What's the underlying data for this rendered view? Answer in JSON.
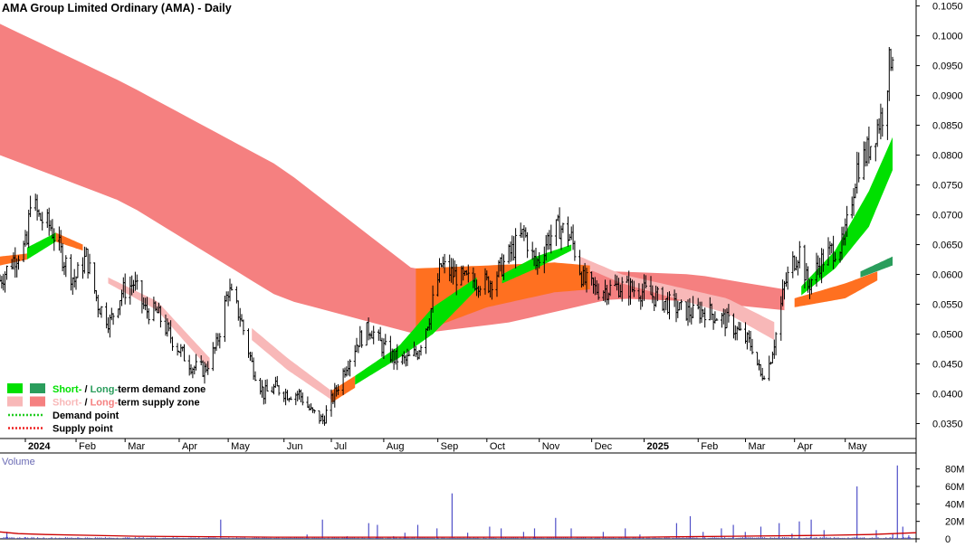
{
  "chart_data": [
    {
      "type": "candlestick",
      "title": "AMA Group Limited Ordinary (AMA) - Daily",
      "x_axis": {
        "ticks": [
          "2024",
          "Feb",
          "Mar",
          "Apr",
          "May",
          "Jun",
          "Jul",
          "Aug",
          "Sep",
          "Oct",
          "Nov",
          "Dec",
          "2025",
          "Feb",
          "Mar",
          "Apr",
          "May"
        ]
      },
      "y_axis": {
        "ticks": [
          "0.1050",
          "0.1000",
          "0.0950",
          "0.0900",
          "0.0850",
          "0.0800",
          "0.0750",
          "0.0700",
          "0.0650",
          "0.0600",
          "0.0550",
          "0.0500",
          "0.0450",
          "0.0400",
          "0.0350"
        ],
        "ylim": [
          0.0325,
          0.106
        ],
        "position": "right"
      },
      "price_path": [
        [
          "2023-12-18",
          0.059
        ],
        [
          "2023-12-27",
          0.063
        ],
        [
          "2024-01-03",
          0.065
        ],
        [
          "2024-01-05",
          0.073
        ],
        [
          "2024-01-10",
          0.0695
        ],
        [
          "2024-01-17",
          0.068
        ],
        [
          "2024-01-24",
          0.063
        ],
        [
          "2024-01-31",
          0.059
        ],
        [
          "2024-02-07",
          0.063
        ],
        [
          "2024-02-14",
          0.055
        ],
        [
          "2024-02-21",
          0.052
        ],
        [
          "2024-02-28",
          0.057
        ],
        [
          "2024-03-06",
          0.0585
        ],
        [
          "2024-03-13",
          0.054
        ],
        [
          "2024-03-20",
          0.0535
        ],
        [
          "2024-03-27",
          0.05
        ],
        [
          "2024-04-03",
          0.047
        ],
        [
          "2024-04-10",
          0.0445
        ],
        [
          "2024-04-17",
          0.044
        ],
        [
          "2024-04-24",
          0.048
        ],
        [
          "2024-05-01",
          0.0575
        ],
        [
          "2024-05-08",
          0.053
        ],
        [
          "2024-05-15",
          0.045
        ],
        [
          "2024-05-22",
          0.04
        ],
        [
          "2024-05-29",
          0.041
        ],
        [
          "2024-06-05",
          0.04
        ],
        [
          "2024-06-12",
          0.04
        ],
        [
          "2024-06-19",
          0.037
        ],
        [
          "2024-06-26",
          0.0355
        ],
        [
          "2024-07-03",
          0.04
        ],
        [
          "2024-07-10",
          0.045
        ],
        [
          "2024-07-17",
          0.049
        ],
        [
          "2024-07-24",
          0.051
        ],
        [
          "2024-07-31",
          0.048
        ],
        [
          "2024-08-07",
          0.046
        ],
        [
          "2024-08-14",
          0.0455
        ],
        [
          "2024-08-21",
          0.047
        ],
        [
          "2024-08-28",
          0.053
        ],
        [
          "2024-09-04",
          0.0615
        ],
        [
          "2024-09-11",
          0.06
        ],
        [
          "2024-09-18",
          0.059
        ],
        [
          "2024-09-25",
          0.059
        ],
        [
          "2024-10-02",
          0.0585
        ],
        [
          "2024-10-09",
          0.061
        ],
        [
          "2024-10-16",
          0.064
        ],
        [
          "2024-10-23",
          0.067
        ],
        [
          "2024-10-30",
          0.0615
        ],
        [
          "2024-11-06",
          0.066
        ],
        [
          "2024-11-13",
          0.068
        ],
        [
          "2024-11-20",
          0.066
        ],
        [
          "2024-11-27",
          0.059
        ],
        [
          "2024-12-04",
          0.0575
        ],
        [
          "2024-12-11",
          0.0575
        ],
        [
          "2024-12-18",
          0.058
        ],
        [
          "2024-12-27",
          0.0575
        ],
        [
          "2025-01-03",
          0.057
        ],
        [
          "2025-01-10",
          0.056
        ],
        [
          "2025-01-17",
          0.055
        ],
        [
          "2025-01-24",
          0.054
        ],
        [
          "2025-01-31",
          0.0535
        ],
        [
          "2025-02-07",
          0.054
        ],
        [
          "2025-02-14",
          0.053
        ],
        [
          "2025-02-21",
          0.052
        ],
        [
          "2025-02-28",
          0.05
        ],
        [
          "2025-03-07",
          0.048
        ],
        [
          "2025-03-12",
          0.043
        ],
        [
          "2025-03-17",
          0.045
        ],
        [
          "2025-03-21",
          0.05
        ],
        [
          "2025-03-26",
          0.058
        ],
        [
          "2025-03-31",
          0.062
        ],
        [
          "2025-04-04",
          0.064
        ],
        [
          "2025-04-09",
          0.058
        ],
        [
          "2025-04-16",
          0.062
        ],
        [
          "2025-04-23",
          0.064
        ],
        [
          "2025-04-30",
          0.065
        ],
        [
          "2025-05-05",
          0.073
        ],
        [
          "2025-05-08",
          0.078
        ],
        [
          "2025-05-13",
          0.08
        ],
        [
          "2025-05-16",
          0.082
        ],
        [
          "2025-05-20",
          0.085
        ],
        [
          "2025-05-23",
          0.087
        ],
        [
          "2025-05-27",
          0.095
        ],
        [
          "2025-05-29",
          0.098
        ]
      ],
      "long_term_supply_zone": {
        "color": "#f58080",
        "upper": [
          [
            "2023-12-18",
            0.102
          ],
          [
            "2024-03-01",
            0.092
          ],
          [
            "2024-06-01",
            0.078
          ],
          [
            "2024-08-20",
            0.0605
          ],
          [
            "2024-10-15",
            0.061
          ],
          [
            "2024-12-15",
            0.0605
          ],
          [
            "2025-02-01",
            0.06
          ],
          [
            "2025-03-26",
            0.0575
          ]
        ],
        "lower": [
          [
            "2023-12-18",
            0.08
          ],
          [
            "2024-03-01",
            0.072
          ],
          [
            "2024-06-01",
            0.056
          ],
          [
            "2024-08-20",
            0.05
          ],
          [
            "2024-10-15",
            0.052
          ],
          [
            "2024-12-15",
            0.056
          ],
          [
            "2025-02-01",
            0.0555
          ],
          [
            "2025-03-26",
            0.054
          ]
        ]
      },
      "short_term_supply_zone": {
        "color": "#f8b8b8",
        "segments": [
          {
            "upper": [
              [
                "2024-02-20",
                0.0595
              ],
              [
                "2024-03-20",
                0.0555
              ],
              [
                "2024-04-20",
                0.046
              ]
            ],
            "lower": [
              [
                "2024-02-20",
                0.0585
              ],
              [
                "2024-03-20",
                0.054
              ],
              [
                "2024-04-20",
                0.044
              ]
            ]
          },
          {
            "upper": [
              [
                "2024-05-15",
                0.051
              ],
              [
                "2024-06-05",
                0.046
              ],
              [
                "2024-07-01",
                0.0405
              ]
            ],
            "lower": [
              [
                "2024-05-15",
                0.049
              ],
              [
                "2024-06-05",
                0.044
              ],
              [
                "2024-07-01",
                0.039
              ]
            ]
          },
          {
            "upper": [
              [
                "2024-11-25",
                0.063
              ],
              [
                "2024-12-20",
                0.06
              ],
              [
                "2025-02-20",
                0.056
              ],
              [
                "2025-03-20",
                0.052
              ]
            ],
            "lower": [
              [
                "2024-11-25",
                0.0615
              ],
              [
                "2024-12-20",
                0.0585
              ],
              [
                "2025-02-20",
                0.0535
              ],
              [
                "2025-03-20",
                0.049
              ]
            ]
          }
        ]
      },
      "short_term_demand_zone": {
        "color": "#00e000",
        "segments": [
          {
            "upper": [
              [
                "2024-01-03",
                0.0645
              ],
              [
                "2024-01-20",
                0.067
              ]
            ],
            "lower": [
              [
                "2024-01-03",
                0.0625
              ],
              [
                "2024-01-20",
                0.0655
              ]
            ]
          },
          {
            "upper": [
              [
                "2024-07-15",
                0.043
              ],
              [
                "2024-08-10",
                0.048
              ],
              [
                "2024-08-30",
                0.0545
              ],
              [
                "2024-09-25",
                0.0595
              ]
            ],
            "lower": [
              [
                "2024-07-15",
                0.0415
              ],
              [
                "2024-08-10",
                0.046
              ],
              [
                "2024-08-30",
                0.05
              ],
              [
                "2024-09-25",
                0.0575
              ]
            ]
          },
          {
            "upper": [
              [
                "2024-10-10",
                0.06
              ],
              [
                "2024-10-30",
                0.063
              ],
              [
                "2024-11-20",
                0.065
              ]
            ],
            "lower": [
              [
                "2024-10-10",
                0.0585
              ],
              [
                "2024-10-30",
                0.061
              ],
              [
                "2024-11-20",
                0.064
              ]
            ]
          },
          {
            "upper": [
              [
                "2025-04-05",
                0.058
              ],
              [
                "2025-04-25",
                0.064
              ],
              [
                "2025-05-15",
                0.074
              ],
              [
                "2025-05-29",
                0.083
              ]
            ],
            "lower": [
              [
                "2025-04-05",
                0.0565
              ],
              [
                "2025-04-25",
                0.061
              ],
              [
                "2025-05-15",
                0.068
              ],
              [
                "2025-05-29",
                0.0775
              ]
            ]
          }
        ]
      },
      "long_term_demand_zone": {
        "color": "#2a9d5c",
        "segments": [
          {
            "upper": [
              [
                "2025-05-10",
                0.0605
              ],
              [
                "2025-05-29",
                0.063
              ]
            ],
            "lower": [
              [
                "2025-05-10",
                0.0595
              ],
              [
                "2025-05-29",
                0.0615
              ]
            ]
          }
        ]
      },
      "orange_band": {
        "color": "#ff7020",
        "segments": [
          {
            "upper": [
              [
                "2023-12-18",
                0.063
              ],
              [
                "2024-01-03",
                0.0635
              ]
            ],
            "lower": [
              [
                "2023-12-18",
                0.0615
              ],
              [
                "2024-01-03",
                0.0625
              ]
            ]
          },
          {
            "upper": [
              [
                "2024-01-20",
                0.067
              ],
              [
                "2024-02-05",
                0.065
              ]
            ],
            "lower": [
              [
                "2024-01-20",
                0.0655
              ],
              [
                "2024-02-05",
                0.064
              ]
            ]
          },
          {
            "upper": [
              [
                "2024-07-01",
                0.0405
              ],
              [
                "2024-07-15",
                0.043
              ]
            ],
            "lower": [
              [
                "2024-07-01",
                0.0385
              ],
              [
                "2024-07-15",
                0.041
              ]
            ]
          },
          {
            "upper": [
              [
                "2024-08-20",
                0.061
              ],
              [
                "2024-10-01",
                0.0615
              ],
              [
                "2024-11-10",
                0.062
              ],
              [
                "2024-12-01",
                0.0615
              ]
            ],
            "lower": [
              [
                "2024-08-20",
                0.05
              ],
              [
                "2024-10-01",
                0.0545
              ],
              [
                "2024-11-10",
                0.057
              ],
              [
                "2024-12-01",
                0.0575
              ]
            ]
          },
          {
            "upper": [
              [
                "2025-04-01",
                0.056
              ],
              [
                "2025-05-01",
                0.0585
              ],
              [
                "2025-05-20",
                0.0605
              ]
            ],
            "lower": [
              [
                "2025-04-01",
                0.0545
              ],
              [
                "2025-05-01",
                0.056
              ],
              [
                "2025-05-20",
                0.059
              ]
            ]
          }
        ]
      },
      "legend": {
        "placement": "bottom-left",
        "items": [
          {
            "label_short": "Short-",
            "label_sep": " / ",
            "label_long": "Long-",
            "label_rest": "term demand zone",
            "short_color": "#00e000",
            "long_color": "#2a9d5c",
            "kind": "zone"
          },
          {
            "label_short": "Short-",
            "label_sep": " / ",
            "label_long": "Long-",
            "label_rest": "term supply zone",
            "short_color": "#f8b8b8",
            "long_color": "#f58080",
            "kind": "zone"
          },
          {
            "label": "Demand point",
            "color": "#22cc22",
            "kind": "dotted"
          },
          {
            "label": "Supply point",
            "color": "#ee2222",
            "kind": "dotted"
          }
        ]
      }
    },
    {
      "type": "bar",
      "title": "Volume",
      "y_axis": {
        "ticks": [
          "80M",
          "60M",
          "40M",
          "20M",
          "0"
        ],
        "ylim": [
          0,
          90
        ],
        "unit": "M"
      },
      "bar_color": "#5050c8",
      "average_line_color": "#cc0000",
      "spikes": [
        [
          0.0075,
          8
        ],
        [
          0.027,
          2
        ],
        [
          0.085,
          2
        ],
        [
          0.14,
          1
        ],
        [
          0.228,
          3
        ],
        [
          0.2409,
          22
        ],
        [
          0.3352,
          5
        ],
        [
          0.352,
          22
        ],
        [
          0.379,
          3
        ],
        [
          0.4025,
          18
        ],
        [
          0.412,
          16
        ],
        [
          0.4295,
          3
        ],
        [
          0.442,
          7
        ],
        [
          0.456,
          16
        ],
        [
          0.477,
          12
        ],
        [
          0.4935,
          52
        ],
        [
          0.5105,
          7
        ],
        [
          0.5345,
          14
        ],
        [
          0.547,
          12
        ],
        [
          0.5715,
          8
        ],
        [
          0.5835,
          12
        ],
        [
          0.6065,
          24
        ],
        [
          0.6235,
          12
        ],
        [
          0.6585,
          8
        ],
        [
          0.6825,
          12
        ],
        [
          0.6985,
          5
        ],
        [
          0.7385,
          18
        ],
        [
          0.7535,
          26
        ],
        [
          0.7675,
          8
        ],
        [
          0.7875,
          12
        ],
        [
          0.8005,
          16
        ],
        [
          0.8135,
          8
        ],
        [
          0.8305,
          14
        ],
        [
          0.8505,
          18
        ],
        [
          0.8645,
          6
        ],
        [
          0.8725,
          20
        ],
        [
          0.8855,
          22
        ],
        [
          0.8995,
          10
        ],
        [
          0.9355,
          60
        ],
        [
          0.9565,
          10
        ],
        [
          0.9745,
          6
        ],
        [
          0.9795,
          84
        ],
        [
          0.9855,
          14
        ],
        [
          0.992,
          4
        ]
      ],
      "average": [
        [
          0,
          8
        ],
        [
          0.02,
          6
        ],
        [
          0.05,
          5
        ],
        [
          0.15,
          3
        ],
        [
          0.3,
          2
        ],
        [
          0.5,
          2
        ],
        [
          0.7,
          2
        ],
        [
          0.8,
          3
        ],
        [
          0.9,
          4
        ],
        [
          0.95,
          5
        ],
        [
          1,
          7
        ]
      ]
    }
  ]
}
